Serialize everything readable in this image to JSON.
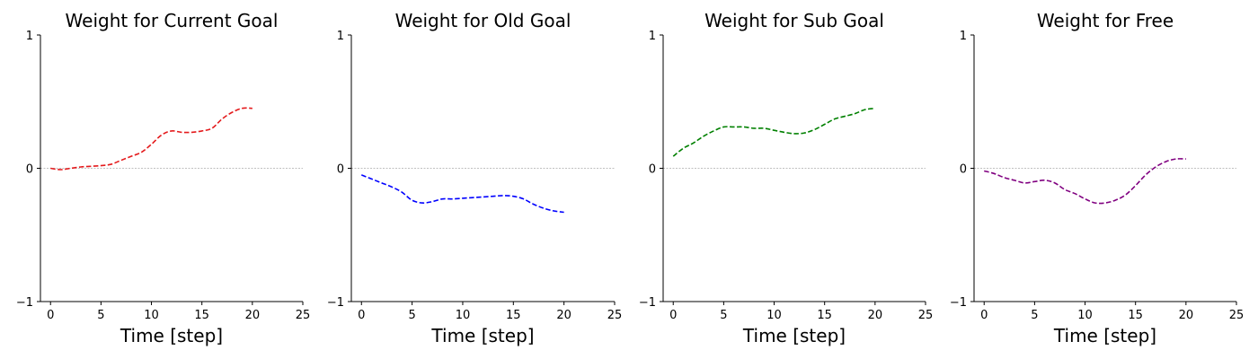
{
  "chart_data": [
    {
      "type": "line",
      "title": "Weight for Current Goal",
      "xlabel": "Time [step]",
      "ylabel": "",
      "xlim": [
        -1,
        25
      ],
      "ylim": [
        -1,
        1
      ],
      "xticks": [
        0,
        5,
        10,
        15,
        20,
        25
      ],
      "yticks": [
        -1,
        0,
        1
      ],
      "ytick_labels": [
        "−1",
        "0",
        "1"
      ],
      "grid": false,
      "reference_line_y": 0,
      "color": "#e41a1c",
      "series": [
        {
          "x": [
            0,
            1,
            2,
            3,
            4,
            5,
            6,
            7,
            8,
            9,
            10,
            11,
            12,
            13,
            14,
            15,
            16,
            17,
            18,
            19,
            20
          ],
          "y": [
            0.0,
            -0.01,
            0.0,
            0.01,
            0.015,
            0.02,
            0.03,
            0.06,
            0.09,
            0.12,
            0.18,
            0.25,
            0.28,
            0.27,
            0.27,
            0.28,
            0.3,
            0.37,
            0.42,
            0.45,
            0.45
          ]
        }
      ]
    },
    {
      "type": "line",
      "title": "Weight for Old Goal",
      "xlabel": "Time [step]",
      "ylabel": "",
      "xlim": [
        -1,
        25
      ],
      "ylim": [
        -1,
        1
      ],
      "xticks": [
        0,
        5,
        10,
        15,
        20,
        25
      ],
      "yticks": [
        -1,
        0,
        1
      ],
      "ytick_labels": [
        "−1",
        "0",
        "1"
      ],
      "grid": false,
      "reference_line_y": 0,
      "color": "#0000ff",
      "series": [
        {
          "x": [
            0,
            1,
            2,
            3,
            4,
            5,
            6,
            7,
            8,
            9,
            10,
            11,
            12,
            13,
            14,
            15,
            16,
            17,
            18,
            19,
            20
          ],
          "y": [
            -0.05,
            -0.08,
            -0.11,
            -0.14,
            -0.18,
            -0.24,
            -0.26,
            -0.25,
            -0.23,
            -0.23,
            -0.225,
            -0.22,
            -0.215,
            -0.21,
            -0.205,
            -0.21,
            -0.23,
            -0.27,
            -0.3,
            -0.32,
            -0.33
          ]
        }
      ]
    },
    {
      "type": "line",
      "title": "Weight for Sub Goal",
      "xlabel": "Time [step]",
      "ylabel": "",
      "xlim": [
        -1,
        25
      ],
      "ylim": [
        -1,
        1
      ],
      "xticks": [
        0,
        5,
        10,
        15,
        20,
        25
      ],
      "yticks": [
        -1,
        0,
        1
      ],
      "ytick_labels": [
        "−1",
        "0",
        "1"
      ],
      "grid": false,
      "reference_line_y": 0,
      "color": "#008000",
      "series": [
        {
          "x": [
            0,
            1,
            2,
            3,
            4,
            5,
            6,
            7,
            8,
            9,
            10,
            11,
            12,
            13,
            14,
            15,
            16,
            17,
            18,
            19,
            20
          ],
          "y": [
            0.09,
            0.15,
            0.19,
            0.24,
            0.28,
            0.31,
            0.31,
            0.31,
            0.3,
            0.3,
            0.285,
            0.27,
            0.26,
            0.265,
            0.29,
            0.33,
            0.37,
            0.39,
            0.41,
            0.44,
            0.45
          ]
        }
      ]
    },
    {
      "type": "line",
      "title": "Weight for Free",
      "xlabel": "Time [step]",
      "ylabel": "",
      "xlim": [
        -1,
        25
      ],
      "ylim": [
        -1,
        1
      ],
      "xticks": [
        0,
        5,
        10,
        15,
        20,
        25
      ],
      "yticks": [
        -1,
        0,
        1
      ],
      "ytick_labels": [
        "−1",
        "0",
        "1"
      ],
      "grid": false,
      "reference_line_y": 0,
      "color": "#800080",
      "series": [
        {
          "x": [
            0,
            1,
            2,
            3,
            4,
            5,
            6,
            7,
            8,
            9,
            10,
            11,
            12,
            13,
            14,
            15,
            16,
            17,
            18,
            19,
            20
          ],
          "y": [
            -0.02,
            -0.04,
            -0.07,
            -0.09,
            -0.11,
            -0.1,
            -0.09,
            -0.11,
            -0.16,
            -0.19,
            -0.23,
            -0.26,
            -0.26,
            -0.24,
            -0.2,
            -0.13,
            -0.05,
            0.01,
            0.05,
            0.07,
            0.07
          ]
        }
      ]
    }
  ]
}
